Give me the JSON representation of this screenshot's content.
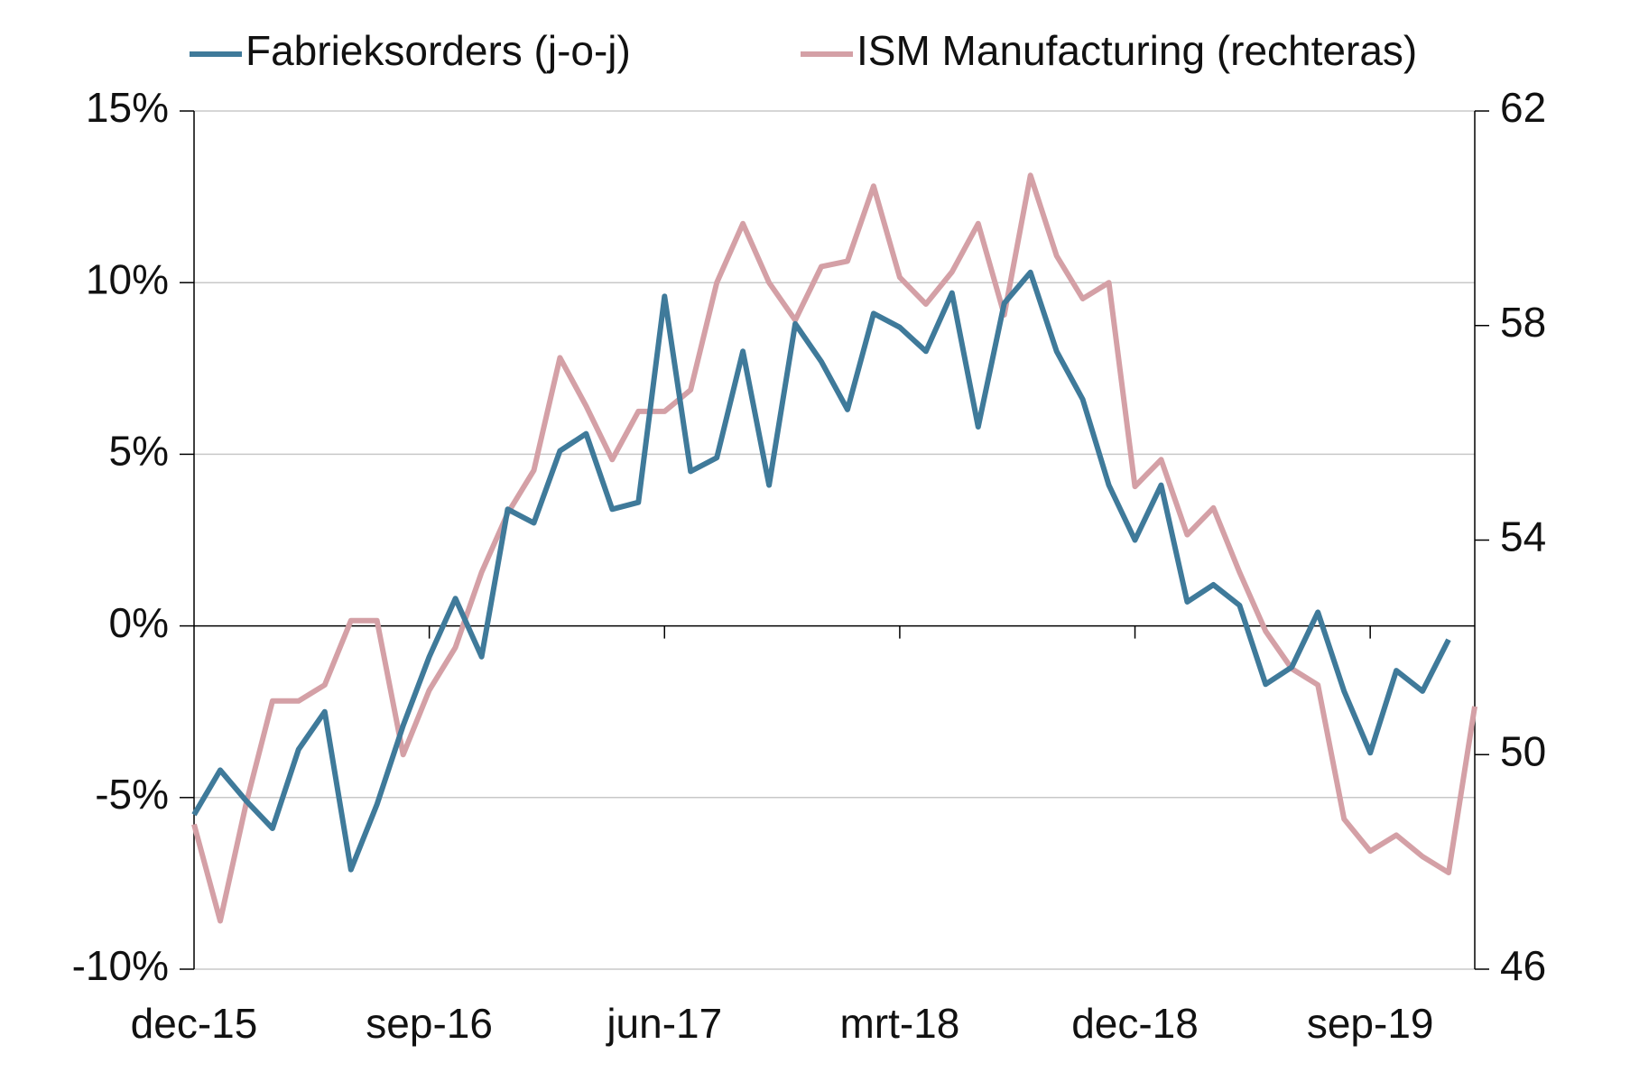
{
  "chart_data": {
    "type": "line",
    "categories": [
      "dec-15",
      null,
      null,
      null,
      null,
      null,
      null,
      null,
      null,
      "sep-16",
      null,
      null,
      null,
      null,
      null,
      null,
      null,
      null,
      "jun-17",
      null,
      null,
      null,
      null,
      null,
      null,
      null,
      null,
      "mrt-18",
      null,
      null,
      null,
      null,
      null,
      null,
      null,
      null,
      "dec-18",
      null,
      null,
      null,
      null,
      null,
      null,
      null,
      null,
      "sep-19",
      null,
      null,
      null,
      null
    ],
    "series": [
      {
        "name": "Fabrieksorders (j-o-j)",
        "color": "#3f7a9a",
        "axis": "y",
        "values": [
          -5.5,
          -4.2,
          -5.1,
          -5.9,
          -3.6,
          -2.5,
          -7.1,
          -5.2,
          -2.9,
          -0.9,
          0.8,
          -0.9,
          3.4,
          3.0,
          5.1,
          5.6,
          3.4,
          3.6,
          9.6,
          4.5,
          4.9,
          8.0,
          4.1,
          8.8,
          7.7,
          6.3,
          9.1,
          8.7,
          8.0,
          9.7,
          5.8,
          9.4,
          10.3,
          8.0,
          6.6,
          4.1,
          2.5,
          4.1,
          0.7,
          1.2,
          0.6,
          -1.7,
          -1.2,
          0.4,
          -1.9,
          -3.7,
          -1.3,
          -1.9,
          -0.4,
          null
        ]
      },
      {
        "name": "ISM Manufacturing (rechteras)",
        "color": "#d4a0a6",
        "axis": "y2",
        "values": [
          48.7,
          46.9,
          49.1,
          51.0,
          51.0,
          51.3,
          52.5,
          52.5,
          50.0,
          51.2,
          52.0,
          53.4,
          54.5,
          55.3,
          57.4,
          56.5,
          55.5,
          56.4,
          56.4,
          56.8,
          58.8,
          59.9,
          58.8,
          58.1,
          59.1,
          59.2,
          60.6,
          58.9,
          58.4,
          59.0,
          59.9,
          58.2,
          60.8,
          59.3,
          58.5,
          58.8,
          55.0,
          55.5,
          54.1,
          54.6,
          53.4,
          52.3,
          51.6,
          51.3,
          48.8,
          48.2,
          48.5,
          48.1,
          47.8,
          50.9
        ]
      }
    ],
    "ylim": [
      -10,
      15
    ],
    "yticks": [
      {
        "value": -10,
        "label": "-10%"
      },
      {
        "value": -5,
        "label": "-5%"
      },
      {
        "value": 0,
        "label": "0%"
      },
      {
        "value": 5,
        "label": "5%"
      },
      {
        "value": 10,
        "label": "10%"
      },
      {
        "value": 15,
        "label": "15%"
      }
    ],
    "y2lim": [
      46,
      62
    ],
    "y2ticks": [
      46,
      50,
      54,
      58,
      62
    ],
    "grid": true,
    "legend": "top"
  }
}
